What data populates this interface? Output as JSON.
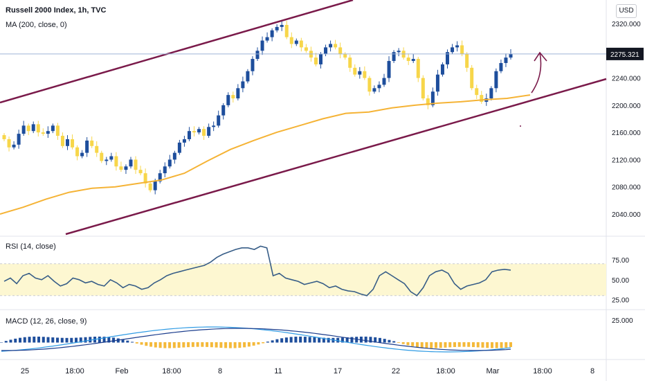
{
  "header": {
    "title": "Russell 2000 Index, 1h, TVC",
    "ma_label": "MA (200, close, 0)",
    "currency": "USD"
  },
  "colors": {
    "up": "#1e4e9c",
    "down": "#f7d64a",
    "ma": "#f5b335",
    "channel": "#7a1a4a",
    "rsi_line": "#375d87",
    "rsi_band": "#fdf7d1",
    "macd_line": "#2f9be4",
    "signal_line": "#1a3c8c",
    "price_tag": "#131722"
  },
  "chart_data": [
    {
      "type": "candlestick",
      "title": "Russell 2000 Index, 1h, TVC",
      "x_ticks": [
        "25",
        "18:00",
        "Feb",
        "18:00",
        "8",
        "11",
        "17",
        "22",
        "18:00",
        "Mar",
        "18:00",
        "8"
      ],
      "y_ticks": [
        2320,
        2280,
        2240,
        2200,
        2160,
        2120,
        2080,
        2040
      ],
      "ylim": [
        2010,
        2335
      ],
      "last_price": "2275.321",
      "series": [
        {
          "name": "Russell 2000 Index",
          "close": [
            2150,
            2138,
            2142,
            2158,
            2170,
            2162,
            2172,
            2160,
            2158,
            2162,
            2170,
            2155,
            2140,
            2150,
            2138,
            2125,
            2130,
            2148,
            2140,
            2130,
            2118,
            2120,
            2125,
            2110,
            2105,
            2110,
            2120,
            2105,
            2100,
            2085,
            2075,
            2088,
            2100,
            2110,
            2120,
            2130,
            2145,
            2150,
            2162,
            2160,
            2165,
            2155,
            2168,
            2170,
            2185,
            2200,
            2215,
            2210,
            2225,
            2235,
            2250,
            2268,
            2280,
            2295,
            2300,
            2310,
            2315,
            2318,
            2300,
            2290,
            2295,
            2285,
            2280,
            2270,
            2260,
            2275,
            2285,
            2290,
            2285,
            2275,
            2270,
            2255,
            2245,
            2250,
            2240,
            2220,
            2225,
            2230,
            2240,
            2265,
            2278,
            2280,
            2270,
            2265,
            2268,
            2240,
            2210,
            2200,
            2220,
            2245,
            2260,
            2278,
            2285,
            2288,
            2275,
            2255,
            2225,
            2215,
            2205,
            2210,
            2225,
            2250,
            2262,
            2270,
            2275.3
          ]
        },
        {
          "name": "MA (200, close, 0)",
          "values": [
            2040,
            2050,
            2062,
            2072,
            2078,
            2080,
            2085,
            2090,
            2100,
            2118,
            2135,
            2148,
            2160,
            2170,
            2180,
            2188,
            2190,
            2196,
            2200,
            2203,
            2205,
            2208,
            2210,
            2215
          ]
        }
      ],
      "annotations": [
        "ascending channel",
        "up arrow"
      ]
    },
    {
      "type": "line",
      "title": "RSI (14, close)",
      "y_ticks": [
        "75.00",
        "50.00",
        "25.00"
      ],
      "ylim": [
        15,
        95
      ],
      "band": [
        30,
        70
      ],
      "series": [
        {
          "name": "RSI",
          "values": [
            48,
            52,
            45,
            55,
            58,
            52,
            50,
            55,
            48,
            42,
            45,
            52,
            50,
            46,
            48,
            44,
            42,
            50,
            46,
            40,
            44,
            42,
            38,
            40,
            46,
            50,
            55,
            58,
            60,
            62,
            64,
            66,
            68,
            72,
            78,
            82,
            85,
            88,
            90,
            90,
            88,
            92,
            90,
            55,
            58,
            52,
            50,
            48,
            44,
            46,
            48,
            45,
            40,
            42,
            38,
            36,
            35,
            32,
            30,
            38,
            55,
            60,
            55,
            50,
            45,
            35,
            30,
            40,
            55,
            60,
            62,
            58,
            45,
            38,
            42,
            44,
            46,
            50,
            60,
            62,
            63,
            62
          ]
        }
      ]
    },
    {
      "type": "bar",
      "title": "MACD (12, 26, close, 9)",
      "y_ticks": [
        "25.000"
      ],
      "series": [
        {
          "name": "MACD"
        },
        {
          "name": "Signal"
        },
        {
          "name": "Histogram"
        }
      ]
    }
  ],
  "axis": {
    "right": {
      "labels": [
        "2320.000",
        "2280.000",
        "2240.000",
        "2200.000",
        "2160.000",
        "2120.000",
        "2080.000",
        "2040.000"
      ],
      "price_tag": "2275.321"
    }
  }
}
